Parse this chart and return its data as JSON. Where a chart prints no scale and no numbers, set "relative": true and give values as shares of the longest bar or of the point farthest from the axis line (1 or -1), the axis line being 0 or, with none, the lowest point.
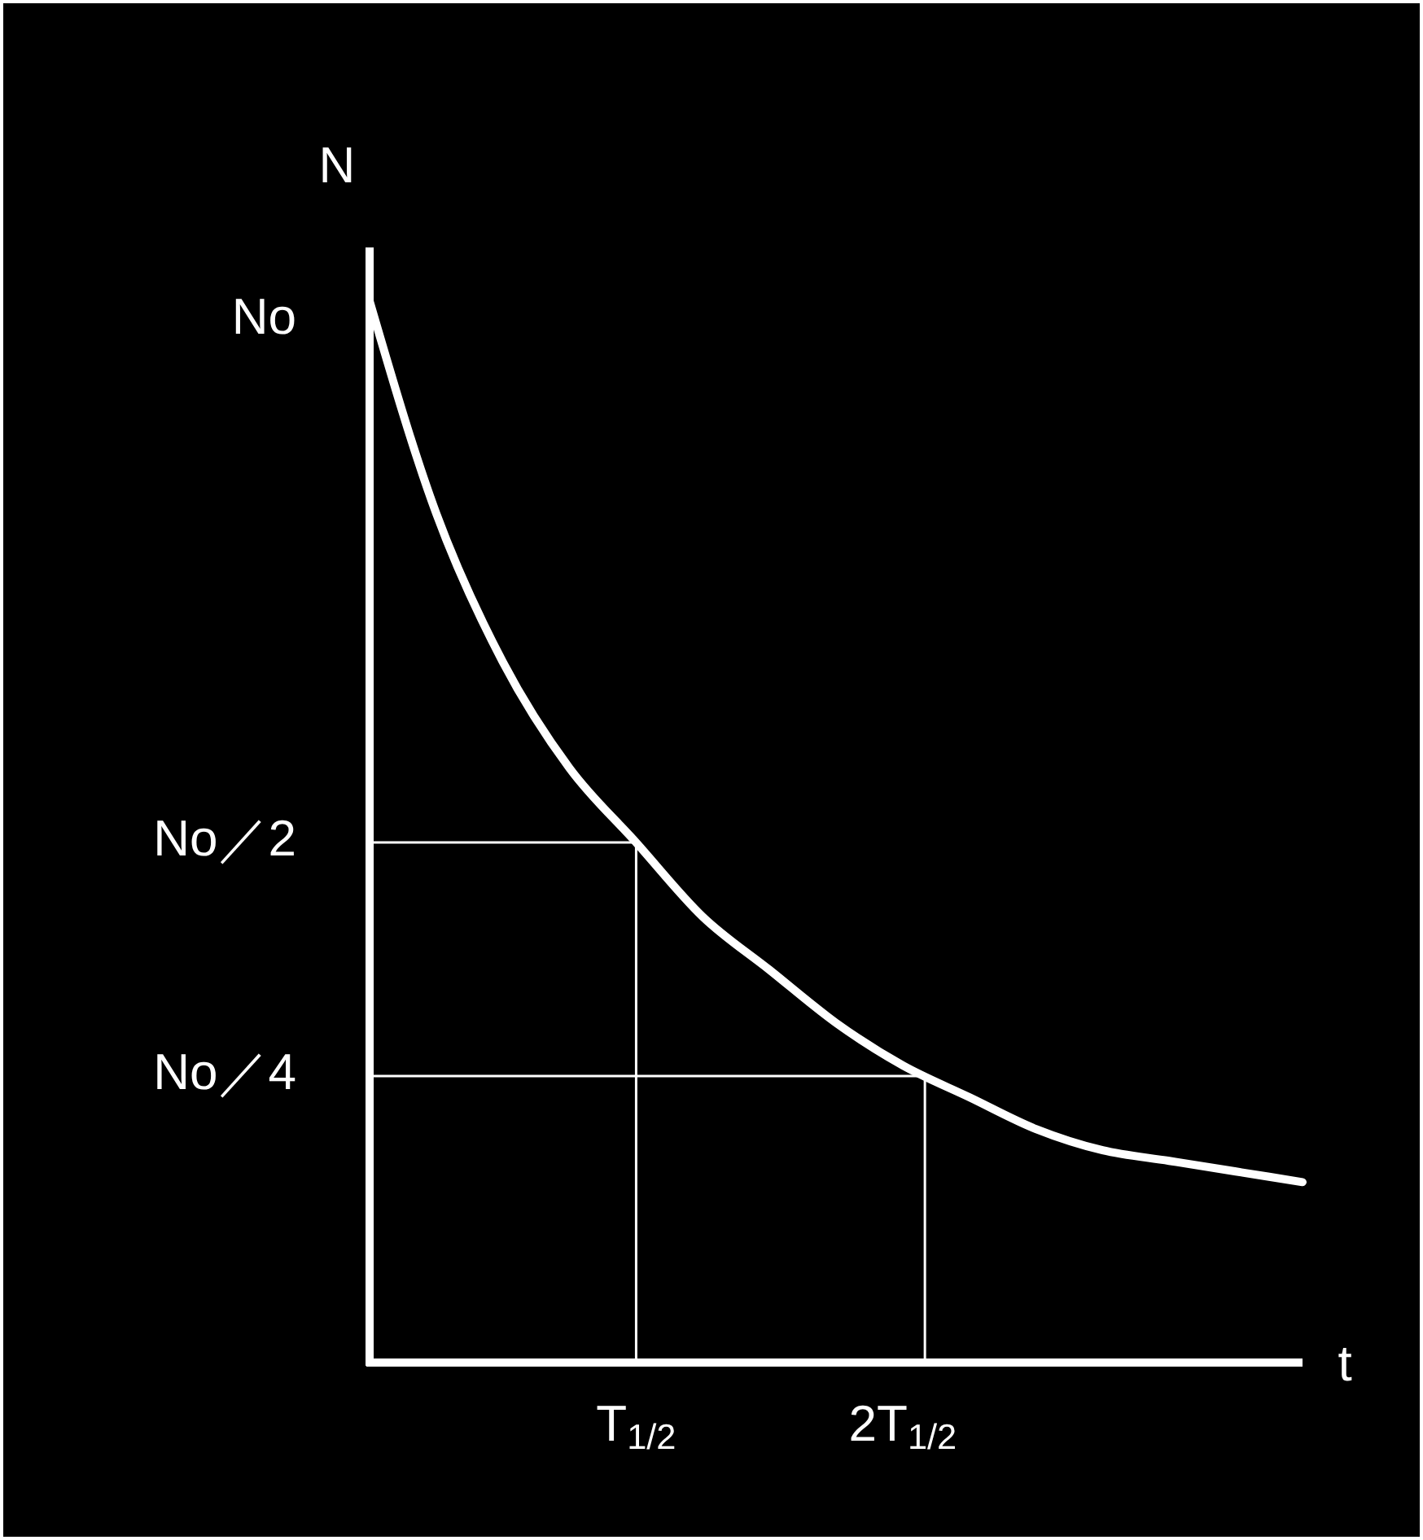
{
  "chart_data": {
    "type": "line",
    "relative": true,
    "xlabel": "t",
    "ylabel": "N",
    "categories": [
      null,
      null,
      null,
      null,
      "T$_{1/2}$",
      null,
      null,
      null,
      "2T$_{1/2}$",
      null,
      null,
      null,
      null,
      null,
      null
    ],
    "series": [
      {
        "color": "#ffffff",
        "values": [
          1.0,
          0.8,
          0.66,
          0.56,
          0.49,
          0.42,
          0.37,
          0.32,
          0.28,
          0.25,
          0.22,
          0.2,
          0.19,
          0.18,
          0.17
        ]
      }
    ],
    "ref_lines": [
      {
        "axis": "y",
        "value": 0.49,
        "label": "No／2",
        "color": "#ffffff"
      },
      {
        "axis": "y",
        "value": 0.27,
        "label": "No／4",
        "color": "#ffffff"
      }
    ],
    "annotations": [
      "No"
    ],
    "grid": false,
    "marker": "none",
    "line_style": "solid"
  }
}
